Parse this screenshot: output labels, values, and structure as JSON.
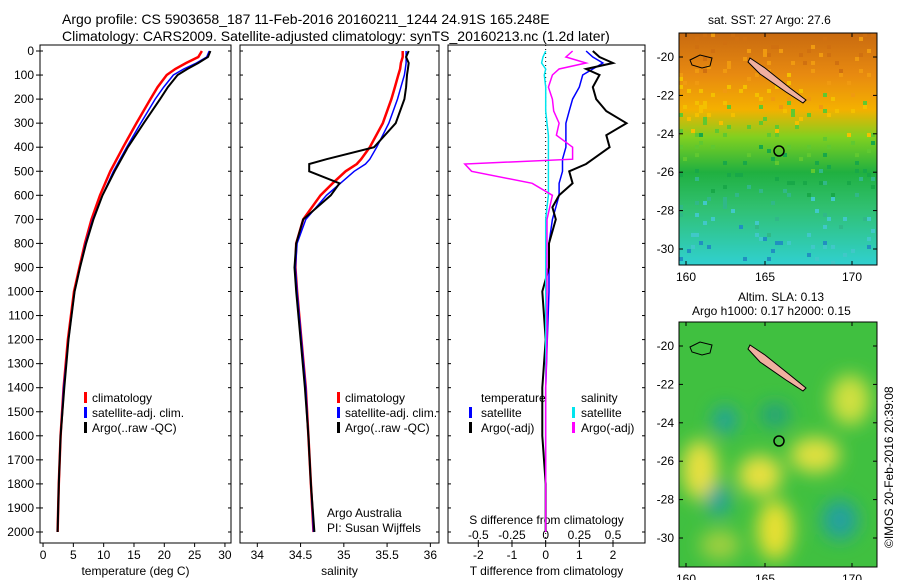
{
  "header": {
    "line1": "Argo profile: CS 5903658_187 11-Feb-2016 20160211_1244 24.91S 165.248E",
    "line2": "Climatology: CARS2009. Satellite-adjusted climatology: synTS_20160213.nc (1.2d later)"
  },
  "colors": {
    "climatology": "#ff0000",
    "satellite": "#0000ff",
    "argo": "#000000",
    "sal_satellite": "#00e5ee",
    "sal_argo": "#ff00ff"
  },
  "chart_data": [
    {
      "type": "line",
      "xlabel": "temperature (deg C)",
      "ylabel": "depth",
      "xlim": [
        -0.5,
        31
      ],
      "ylim": [
        2050,
        0
      ],
      "xticks": [
        "0",
        "5",
        "10",
        "15",
        "20",
        "25",
        "30"
      ],
      "yticks": [
        "0",
        "100",
        "200",
        "300",
        "400",
        "500",
        "600",
        "700",
        "800",
        "900",
        "1000",
        "1100",
        "1200",
        "1300",
        "1400",
        "1500",
        "1600",
        "1700",
        "1800",
        "1900",
        "2000"
      ],
      "depth": [
        0,
        25,
        50,
        75,
        100,
        150,
        200,
        300,
        400,
        500,
        600,
        700,
        800,
        900,
        1000,
        1200,
        1400,
        1600,
        1800,
        2000
      ],
      "legend": [
        "climatology",
        "satellite-adj. clim.",
        "Argo(..raw -QC)"
      ],
      "series": [
        {
          "name": "climatology",
          "values": [
            26.2,
            25.6,
            23.6,
            21.8,
            20.4,
            18.9,
            17.7,
            15.4,
            13.2,
            11.1,
            9.4,
            8.0,
            6.9,
            6.0,
            5.1,
            4.1,
            3.4,
            2.9,
            2.6,
            2.4
          ]
        },
        {
          "name": "satellite-adj. clim.",
          "values": [
            27.4,
            27.0,
            25.3,
            23.2,
            21.5,
            19.9,
            18.5,
            16.1,
            13.8,
            11.6,
            9.8,
            8.2,
            7.0,
            6.1,
            5.2,
            4.2,
            3.4,
            2.9,
            2.6,
            2.4
          ]
        },
        {
          "name": "Argo(..raw -QC)",
          "values": [
            27.6,
            27.2,
            25.6,
            23.8,
            22.2,
            20.6,
            19.3,
            16.6,
            14.0,
            11.8,
            9.8,
            8.3,
            7.1,
            6.1,
            5.2,
            4.2,
            3.5,
            2.9,
            2.6,
            2.4
          ]
        }
      ]
    },
    {
      "type": "line",
      "xlabel": "salinity",
      "xlim": [
        33.8,
        36.1
      ],
      "ylim": [
        2050,
        0
      ],
      "xticks": [
        "34",
        "34.5",
        "35",
        "35.5",
        "36"
      ],
      "depth": [
        0,
        25,
        50,
        75,
        100,
        150,
        200,
        300,
        400,
        450,
        470,
        500,
        550,
        600,
        700,
        800,
        900,
        1000,
        1200,
        1400,
        1600,
        1800,
        2000
      ],
      "legend": [
        "climatology",
        "satellite-adj. clim.",
        "Argo(..raw -QC)"
      ],
      "annotation": [
        "Argo Australia",
        "PI: Susan Wijffels"
      ],
      "series": [
        {
          "name": "climatology",
          "values": [
            35.68,
            35.68,
            35.66,
            35.65,
            35.63,
            35.59,
            35.55,
            35.45,
            35.3,
            35.2,
            35.15,
            35.02,
            34.87,
            34.73,
            34.53,
            34.45,
            34.44,
            34.46,
            34.51,
            34.56,
            34.59,
            34.62,
            34.65
          ]
        },
        {
          "name": "satellite-adj. clim.",
          "values": [
            35.72,
            35.72,
            35.72,
            35.71,
            35.7,
            35.66,
            35.62,
            35.52,
            35.38,
            35.3,
            35.25,
            35.12,
            34.96,
            34.8,
            34.56,
            34.46,
            34.44,
            34.46,
            34.51,
            34.56,
            34.59,
            34.62,
            34.65
          ]
        },
        {
          "name": "Argo(..raw -QC)",
          "values": [
            35.75,
            35.72,
            35.75,
            35.74,
            35.73,
            35.72,
            35.7,
            35.6,
            35.35,
            34.8,
            34.6,
            34.6,
            34.95,
            34.85,
            34.53,
            34.45,
            34.43,
            34.45,
            34.5,
            34.55,
            34.59,
            34.62,
            34.66
          ]
        }
      ]
    },
    {
      "type": "line",
      "xlabel": "T difference from climatology",
      "x2label": "S difference from climatology",
      "xlim": [
        -2.9,
        2.95
      ],
      "ylim": [
        2050,
        0
      ],
      "xticks": [
        "-2",
        "-1",
        "0",
        "1",
        "2"
      ],
      "x2ticks": [
        "-0.5",
        "-0.25",
        "0",
        "0.25",
        "0.5"
      ],
      "depth": [
        0,
        25,
        50,
        75,
        100,
        150,
        200,
        250,
        300,
        350,
        400,
        450,
        470,
        500,
        550,
        600,
        650,
        700,
        800,
        900,
        1000,
        1200,
        1400,
        1600,
        1800,
        2000
      ],
      "legend": {
        "temperature": [
          "satellite",
          "Argo(-adj)"
        ],
        "salinity": [
          "satellite",
          "Argo(-adj)"
        ]
      },
      "series": [
        {
          "name": "temperature satellite",
          "values": [
            1.2,
            1.4,
            1.7,
            1.4,
            1.1,
            1.0,
            0.8,
            0.7,
            0.6,
            0.6,
            0.6,
            0.5,
            0.5,
            0.5,
            0.4,
            0.4,
            0.3,
            0.2,
            0.1,
            0.1,
            0.1,
            0.05,
            0.0,
            0.0,
            0.0,
            0.0
          ]
        },
        {
          "name": "temperature Argo(-adj)",
          "values": [
            1.4,
            1.6,
            2.0,
            1.2,
            1.6,
            1.4,
            1.5,
            1.8,
            2.4,
            1.8,
            1.9,
            1.4,
            1.2,
            0.7,
            0.8,
            0.4,
            0.2,
            0.3,
            0.1,
            0.1,
            -0.1,
            0.0,
            -0.1,
            -0.1,
            0.0,
            0.0
          ]
        },
        {
          "name": "salinity satellite",
          "values": [
            0.0,
            -0.02,
            -0.03,
            0.0,
            -0.01,
            0.0,
            0.0,
            0.0,
            0.01,
            0.02,
            0.02,
            0.02,
            0.02,
            0.02,
            0.02,
            0.02,
            0.01,
            0.0,
            0.0,
            0.0,
            0.0,
            0.0,
            0.0,
            0.0,
            0.0,
            0.0
          ]
        },
        {
          "name": "salinity Argo(-adj)",
          "values": [
            0.2,
            0.15,
            0.3,
            0.1,
            0.05,
            0.02,
            0.05,
            0.06,
            0.1,
            0.08,
            0.2,
            0.2,
            -0.6,
            -0.55,
            -0.1,
            0.05,
            0.03,
            0.01,
            0.01,
            0.01,
            0.01,
            0.01,
            0.0,
            0.0,
            0.0,
            0.0
          ]
        }
      ]
    }
  ],
  "maps": {
    "sst": {
      "title": "sat. SST: 27 Argo: 27.6",
      "lat_ticks": [
        "-20",
        "-22",
        "-24",
        "-26",
        "-28",
        "-30"
      ],
      "lon_ticks": [
        "160",
        "165",
        "170"
      ],
      "argo_lon": 165.248,
      "argo_lat": -24.91
    },
    "sla": {
      "title1": "Altim. SLA: 0.13",
      "title2": "Argo h1000: 0.17 h2000: 0.15",
      "lat_ticks": [
        "-20",
        "-22",
        "-24",
        "-26",
        "-28",
        "-30"
      ],
      "lon_ticks": [
        "160",
        "165",
        "170"
      ],
      "argo_lon": 165.248,
      "argo_lat": -24.91
    }
  },
  "credit": "©IMOS 20-Feb-2016 20:39:08"
}
